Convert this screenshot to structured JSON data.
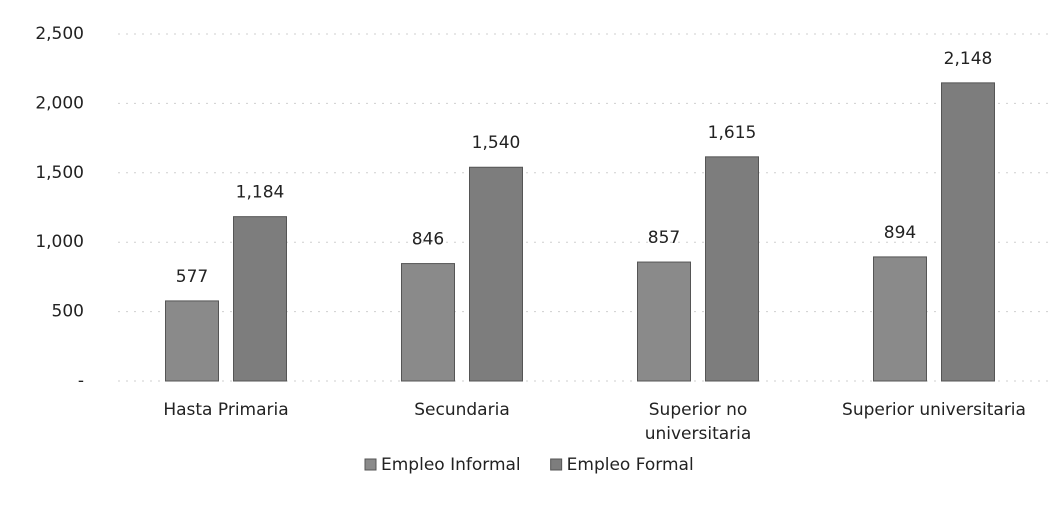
{
  "chart_data": {
    "type": "bar",
    "categories": [
      "Hasta Primaria",
      "Secundaria",
      "Superior no universitaria",
      "Superior universitaria"
    ],
    "series": [
      {
        "name": "Empleo Informal",
        "color": "#8a8a8a",
        "values": [
          577,
          846,
          857,
          894
        ],
        "value_labels": [
          "577",
          "846",
          "857",
          "894"
        ]
      },
      {
        "name": "Empleo Formal",
        "color": "#7d7d7d",
        "values": [
          1184,
          1540,
          1615,
          2148
        ],
        "value_labels": [
          "1,184",
          "1,540",
          "1,615",
          "2,148"
        ]
      }
    ],
    "ylim": [
      0,
      2500
    ],
    "yticks": [
      {
        "value": 0,
        "label": "-"
      },
      500,
      {
        "value": 1000,
        "label": "1,000"
      },
      {
        "value": 1500,
        "label": "1,500"
      },
      {
        "value": 2000,
        "label": "2,000"
      },
      {
        "value": 2500,
        "label": "2,500"
      }
    ],
    "grid": true,
    "legend": "bottom"
  }
}
